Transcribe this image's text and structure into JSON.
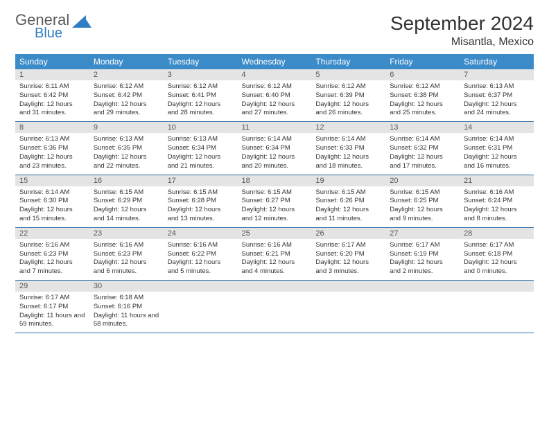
{
  "brand": {
    "word1": "General",
    "word2": "Blue",
    "icon_color": "#2f7ec2",
    "word1_color": "#5a5a5a"
  },
  "title": {
    "month": "September 2024",
    "location": "Misantla, Mexico",
    "text_color": "#333333"
  },
  "theme": {
    "header_bg": "#3b8bc9",
    "header_fg": "#ffffff",
    "daynum_bg": "#e4e4e4",
    "daynum_fg": "#555555",
    "cell_border": "#2f6fa6",
    "body_fg": "#333333",
    "page_bg": "#ffffff",
    "font_family": "Arial, Helvetica, sans-serif",
    "title_fontsize": 28,
    "location_fontsize": 16,
    "dayhead_fontsize": 12,
    "daynum_fontsize": 11,
    "body_fontsize": 9.5
  },
  "weekdays": [
    "Sunday",
    "Monday",
    "Tuesday",
    "Wednesday",
    "Thursday",
    "Friday",
    "Saturday"
  ],
  "days": [
    {
      "n": "1",
      "sunrise": "6:11 AM",
      "sunset": "6:42 PM",
      "daylight": "12 hours and 31 minutes."
    },
    {
      "n": "2",
      "sunrise": "6:12 AM",
      "sunset": "6:42 PM",
      "daylight": "12 hours and 29 minutes."
    },
    {
      "n": "3",
      "sunrise": "6:12 AM",
      "sunset": "6:41 PM",
      "daylight": "12 hours and 28 minutes."
    },
    {
      "n": "4",
      "sunrise": "6:12 AM",
      "sunset": "6:40 PM",
      "daylight": "12 hours and 27 minutes."
    },
    {
      "n": "5",
      "sunrise": "6:12 AM",
      "sunset": "6:39 PM",
      "daylight": "12 hours and 26 minutes."
    },
    {
      "n": "6",
      "sunrise": "6:12 AM",
      "sunset": "6:38 PM",
      "daylight": "12 hours and 25 minutes."
    },
    {
      "n": "7",
      "sunrise": "6:13 AM",
      "sunset": "6:37 PM",
      "daylight": "12 hours and 24 minutes."
    },
    {
      "n": "8",
      "sunrise": "6:13 AM",
      "sunset": "6:36 PM",
      "daylight": "12 hours and 23 minutes."
    },
    {
      "n": "9",
      "sunrise": "6:13 AM",
      "sunset": "6:35 PM",
      "daylight": "12 hours and 22 minutes."
    },
    {
      "n": "10",
      "sunrise": "6:13 AM",
      "sunset": "6:34 PM",
      "daylight": "12 hours and 21 minutes."
    },
    {
      "n": "11",
      "sunrise": "6:14 AM",
      "sunset": "6:34 PM",
      "daylight": "12 hours and 20 minutes."
    },
    {
      "n": "12",
      "sunrise": "6:14 AM",
      "sunset": "6:33 PM",
      "daylight": "12 hours and 18 minutes."
    },
    {
      "n": "13",
      "sunrise": "6:14 AM",
      "sunset": "6:32 PM",
      "daylight": "12 hours and 17 minutes."
    },
    {
      "n": "14",
      "sunrise": "6:14 AM",
      "sunset": "6:31 PM",
      "daylight": "12 hours and 16 minutes."
    },
    {
      "n": "15",
      "sunrise": "6:14 AM",
      "sunset": "6:30 PM",
      "daylight": "12 hours and 15 minutes."
    },
    {
      "n": "16",
      "sunrise": "6:15 AM",
      "sunset": "6:29 PM",
      "daylight": "12 hours and 14 minutes."
    },
    {
      "n": "17",
      "sunrise": "6:15 AM",
      "sunset": "6:28 PM",
      "daylight": "12 hours and 13 minutes."
    },
    {
      "n": "18",
      "sunrise": "6:15 AM",
      "sunset": "6:27 PM",
      "daylight": "12 hours and 12 minutes."
    },
    {
      "n": "19",
      "sunrise": "6:15 AM",
      "sunset": "6:26 PM",
      "daylight": "12 hours and 11 minutes."
    },
    {
      "n": "20",
      "sunrise": "6:15 AM",
      "sunset": "6:25 PM",
      "daylight": "12 hours and 9 minutes."
    },
    {
      "n": "21",
      "sunrise": "6:16 AM",
      "sunset": "6:24 PM",
      "daylight": "12 hours and 8 minutes."
    },
    {
      "n": "22",
      "sunrise": "6:16 AM",
      "sunset": "6:23 PM",
      "daylight": "12 hours and 7 minutes."
    },
    {
      "n": "23",
      "sunrise": "6:16 AM",
      "sunset": "6:23 PM",
      "daylight": "12 hours and 6 minutes."
    },
    {
      "n": "24",
      "sunrise": "6:16 AM",
      "sunset": "6:22 PM",
      "daylight": "12 hours and 5 minutes."
    },
    {
      "n": "25",
      "sunrise": "6:16 AM",
      "sunset": "6:21 PM",
      "daylight": "12 hours and 4 minutes."
    },
    {
      "n": "26",
      "sunrise": "6:17 AM",
      "sunset": "6:20 PM",
      "daylight": "12 hours and 3 minutes."
    },
    {
      "n": "27",
      "sunrise": "6:17 AM",
      "sunset": "6:19 PM",
      "daylight": "12 hours and 2 minutes."
    },
    {
      "n": "28",
      "sunrise": "6:17 AM",
      "sunset": "6:18 PM",
      "daylight": "12 hours and 0 minutes."
    },
    {
      "n": "29",
      "sunrise": "6:17 AM",
      "sunset": "6:17 PM",
      "daylight": "11 hours and 59 minutes."
    },
    {
      "n": "30",
      "sunrise": "6:18 AM",
      "sunset": "6:16 PM",
      "daylight": "11 hours and 58 minutes."
    }
  ],
  "labels": {
    "sunrise": "Sunrise:",
    "sunset": "Sunset:",
    "daylight": "Daylight:"
  },
  "grid": {
    "columns": 7,
    "rows": 5,
    "start_weekday": 0,
    "trailing_empty": 5
  }
}
